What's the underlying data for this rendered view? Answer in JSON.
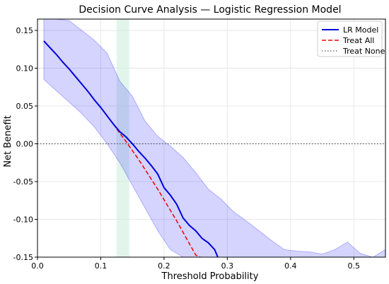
{
  "chart_data": {
    "type": "line",
    "title": "Decision Curve Analysis — Logistic Regression Model",
    "xlabel": "Threshold Probability",
    "ylabel": "Net Benefit",
    "xlim": [
      0.0,
      0.55
    ],
    "ylim": [
      -0.15,
      0.165
    ],
    "xticks": [
      "0.0",
      "0.1",
      "0.2",
      "0.3",
      "0.4",
      "0.5"
    ],
    "yticks": [
      "-0.15",
      "-0.10",
      "-0.05",
      "0.00",
      "0.05",
      "0.10",
      "0.15"
    ],
    "grid": true,
    "legend_position": "top-right",
    "highlight_band": {
      "x_start": 0.125,
      "x_end": 0.145,
      "color": "#cfeedd"
    },
    "series": [
      {
        "name": "LR Model",
        "style": "solid",
        "color": "#0000dd",
        "x": [
          0.01,
          0.02,
          0.03,
          0.04,
          0.05,
          0.06,
          0.07,
          0.08,
          0.09,
          0.1,
          0.11,
          0.12,
          0.13,
          0.14,
          0.15,
          0.16,
          0.17,
          0.18,
          0.19,
          0.2,
          0.21,
          0.22,
          0.23,
          0.24,
          0.25,
          0.26,
          0.27,
          0.28,
          0.285
        ],
        "y": [
          0.136,
          0.127,
          0.118,
          0.108,
          0.099,
          0.089,
          0.079,
          0.069,
          0.058,
          0.048,
          0.037,
          0.026,
          0.016,
          0.009,
          0.0,
          -0.01,
          -0.019,
          -0.029,
          -0.04,
          -0.058,
          -0.068,
          -0.08,
          -0.098,
          -0.108,
          -0.115,
          -0.125,
          -0.131,
          -0.14,
          -0.15
        ]
      },
      {
        "name": "Treat All",
        "style": "dashed",
        "color": "#ee0000",
        "x": [
          0.01,
          0.02,
          0.03,
          0.04,
          0.05,
          0.06,
          0.07,
          0.08,
          0.09,
          0.1,
          0.11,
          0.12,
          0.13,
          0.14,
          0.15,
          0.16,
          0.17,
          0.18,
          0.19,
          0.2,
          0.21,
          0.22,
          0.23,
          0.24,
          0.25,
          0.257
        ],
        "y": [
          0.136,
          0.127,
          0.118,
          0.108,
          0.099,
          0.089,
          0.079,
          0.069,
          0.058,
          0.048,
          0.037,
          0.026,
          0.014,
          0.003,
          -0.009,
          -0.021,
          -0.034,
          -0.047,
          -0.06,
          -0.074,
          -0.088,
          -0.102,
          -0.117,
          -0.132,
          -0.147,
          -0.15
        ]
      },
      {
        "name": "Treat None",
        "style": "dotted",
        "color": "#555555",
        "x": [
          0.0,
          0.55
        ],
        "y": [
          0.0,
          0.0
        ]
      }
    ],
    "confidence_band": {
      "series": "LR Model",
      "color": "#0000ff",
      "opacity": 0.17,
      "x": [
        0.01,
        0.03,
        0.05,
        0.07,
        0.09,
        0.11,
        0.13,
        0.15,
        0.17,
        0.19,
        0.21,
        0.23,
        0.25,
        0.27,
        0.29,
        0.31,
        0.33,
        0.35,
        0.37,
        0.39,
        0.41,
        0.43,
        0.45,
        0.47,
        0.49,
        0.51,
        0.53,
        0.55
      ],
      "upper": [
        0.185,
        0.175,
        0.163,
        0.15,
        0.137,
        0.12,
        0.083,
        0.063,
        0.03,
        0.01,
        -0.003,
        -0.018,
        -0.038,
        -0.06,
        -0.073,
        -0.09,
        -0.102,
        -0.115,
        -0.128,
        -0.14,
        -0.142,
        -0.143,
        -0.146,
        -0.14,
        -0.13,
        -0.145,
        -0.15,
        -0.14
      ],
      "lower": [
        0.085,
        0.07,
        0.055,
        0.04,
        0.022,
        0.0,
        -0.025,
        -0.055,
        -0.085,
        -0.115,
        -0.14,
        -0.15,
        -0.15,
        -0.15,
        -0.15,
        -0.15,
        -0.15,
        -0.15,
        -0.15,
        -0.15,
        -0.15,
        -0.15,
        -0.15,
        -0.15,
        -0.15,
        -0.15,
        -0.15,
        -0.15
      ]
    }
  }
}
